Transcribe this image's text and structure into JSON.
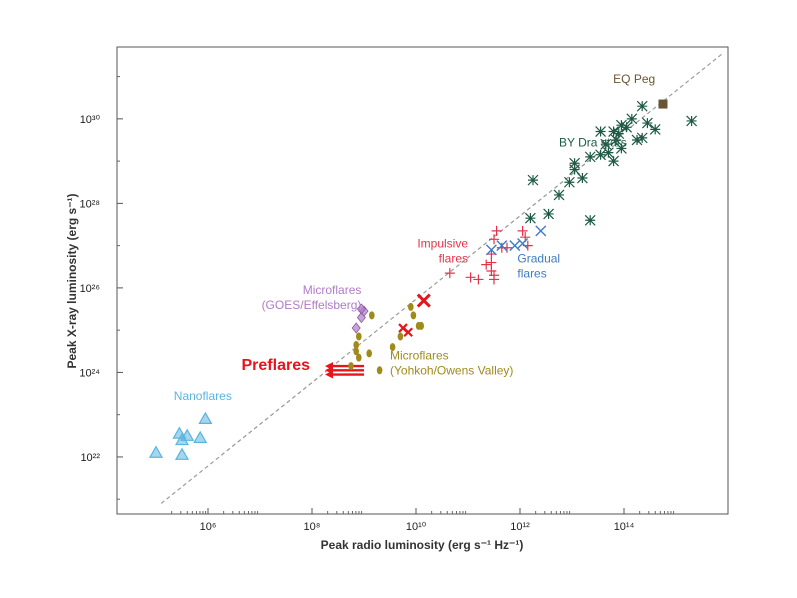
{
  "chart_data": {
    "type": "scatter",
    "xlabel": "Peak radio luminosity (erg s⁻¹ Hz⁻¹)",
    "ylabel": "Peak X-ray luminosity (erg s⁻¹)",
    "xscale": "log",
    "yscale": "log",
    "xlim_log10": [
      4.25,
      16.0
    ],
    "ylim_log10": [
      20.65,
      31.7
    ],
    "x_ticks": [
      {
        "log": 6,
        "label": "10⁶"
      },
      {
        "log": 8,
        "label": "10⁸"
      },
      {
        "log": 10,
        "label": "10¹⁰"
      },
      {
        "log": 12,
        "label": "10¹²"
      },
      {
        "log": 14,
        "label": "10¹⁴"
      }
    ],
    "y_ticks": [
      {
        "log": 22,
        "label": "10²²"
      },
      {
        "log": 24,
        "label": "10²⁴"
      },
      {
        "log": 26,
        "label": "10²⁶"
      },
      {
        "log": 28,
        "label": "10²⁸"
      },
      {
        "log": 30,
        "label": "10³⁰"
      }
    ],
    "reference_line": {
      "style": "dashed",
      "log_points": [
        [
          5.1,
          20.9
        ],
        [
          15.9,
          31.55
        ]
      ]
    },
    "preflares_arrows": {
      "label": "Preflares",
      "color": "#e8141c",
      "log_x_from": 9.0,
      "log_x_to": 8.25,
      "log_y": [
        24.15,
        24.05,
        23.95
      ]
    },
    "series": [
      {
        "name": "Nanoflares",
        "label": "Nanoflares",
        "marker": "triangle",
        "color": "#5ab4e0",
        "label_lines": [
          "Nanoflares"
        ],
        "points": [
          [
            5.0,
            22.1
          ],
          [
            5.5,
            22.05
          ],
          [
            5.45,
            22.55
          ],
          [
            5.6,
            22.5
          ],
          [
            5.85,
            22.45
          ],
          [
            5.5,
            22.4
          ],
          [
            5.95,
            22.9
          ]
        ]
      },
      {
        "name": "Microflares (GOES/Effelsberg)",
        "label": "Microflares (GOES/Effelsberg)",
        "marker": "diamond",
        "color": "#b07cc6",
        "label_lines": [
          "Microflares",
          "(GOES/Effelsberg)"
        ],
        "points": [
          [
            8.85,
            25.05
          ],
          [
            8.95,
            25.3
          ],
          [
            9.0,
            25.45
          ],
          [
            8.95,
            25.5
          ]
        ]
      },
      {
        "name": "Microflares (Yohkoh/Owens Valley)",
        "label": "Microflares (Yohkoh/Owens Valley)",
        "marker": "ellipse",
        "color": "#a08a1c",
        "label_lines": [
          "Microflares",
          "(Yohkoh/Owens Valley)"
        ],
        "points": [
          [
            8.75,
            24.15
          ],
          [
            8.85,
            24.5
          ],
          [
            8.9,
            24.35
          ],
          [
            8.85,
            24.65
          ],
          [
            8.9,
            24.85
          ],
          [
            9.1,
            24.45
          ],
          [
            9.15,
            25.35
          ],
          [
            9.3,
            24.05
          ],
          [
            9.55,
            24.6
          ],
          [
            9.7,
            24.85
          ],
          [
            9.95,
            25.35
          ],
          [
            10.05,
            25.1
          ],
          [
            9.9,
            25.55
          ],
          [
            10.1,
            25.1
          ]
        ]
      },
      {
        "name": "Microflares (red)",
        "label": "",
        "marker": "x",
        "color": "#e8141c",
        "label_lines": [],
        "points": [
          [
            9.75,
            25.05
          ],
          [
            9.85,
            24.95
          ],
          [
            10.15,
            25.7
          ]
        ]
      },
      {
        "name": "Impulsive flares",
        "label": "Impulsive flares",
        "marker": "plus",
        "color": "#e8324a",
        "label_lines": [
          "Impulsive",
          "flares"
        ],
        "points": [
          [
            10.65,
            26.35
          ],
          [
            11.05,
            26.25
          ],
          [
            11.2,
            26.2
          ],
          [
            11.35,
            26.55
          ],
          [
            11.45,
            26.4
          ],
          [
            11.5,
            26.3
          ],
          [
            11.45,
            26.8
          ],
          [
            11.5,
            27.15
          ],
          [
            11.55,
            27.35
          ],
          [
            11.65,
            26.95
          ],
          [
            11.75,
            26.95
          ],
          [
            12.05,
            27.35
          ],
          [
            12.1,
            27.2
          ],
          [
            12.15,
            27.0
          ],
          [
            11.45,
            26.6
          ],
          [
            11.5,
            26.2
          ]
        ]
      },
      {
        "name": "Gradual flares",
        "label": "Gradual flares",
        "marker": "x",
        "color": "#3d7cc6",
        "label_lines": [
          "Gradual",
          "flares"
        ],
        "points": [
          [
            11.45,
            26.9
          ],
          [
            11.65,
            27.0
          ],
          [
            11.9,
            27.0
          ],
          [
            12.05,
            27.05
          ],
          [
            12.4,
            27.35
          ]
        ]
      },
      {
        "name": "BY Dra stars",
        "label": "BY Dra stars",
        "marker": "asterisk",
        "color": "#1e5a44",
        "label_lines": [
          "BY Dra stars"
        ],
        "points": [
          [
            12.2,
            27.65
          ],
          [
            12.55,
            27.75
          ],
          [
            12.75,
            28.2
          ],
          [
            12.95,
            28.5
          ],
          [
            13.05,
            28.8
          ],
          [
            13.2,
            28.6
          ],
          [
            13.35,
            29.1
          ],
          [
            13.55,
            29.15
          ],
          [
            13.65,
            29.4
          ],
          [
            13.7,
            29.2
          ],
          [
            13.8,
            29.0
          ],
          [
            13.85,
            29.5
          ],
          [
            13.95,
            29.3
          ],
          [
            13.8,
            29.7
          ],
          [
            13.9,
            29.65
          ],
          [
            14.05,
            29.8
          ],
          [
            14.15,
            30.0
          ],
          [
            14.25,
            29.5
          ],
          [
            14.35,
            30.3
          ],
          [
            14.45,
            29.9
          ],
          [
            14.35,
            29.55
          ],
          [
            13.55,
            29.7
          ],
          [
            13.05,
            28.95
          ],
          [
            12.25,
            28.55
          ],
          [
            13.35,
            27.6
          ],
          [
            14.6,
            29.75
          ],
          [
            15.3,
            29.95
          ],
          [
            13.95,
            29.85
          ]
        ]
      },
      {
        "name": "EQ Peg",
        "label": "EQ Peg",
        "marker": "square",
        "color": "#6b5434",
        "label_lines": [
          "EQ Peg"
        ],
        "points": [
          [
            14.75,
            30.35
          ]
        ]
      }
    ],
    "labels": [
      {
        "text": "Preflares",
        "color": "#e8141c",
        "size": 16,
        "anchor": "end",
        "log": [
          8.0,
          24.15
        ]
      }
    ]
  }
}
